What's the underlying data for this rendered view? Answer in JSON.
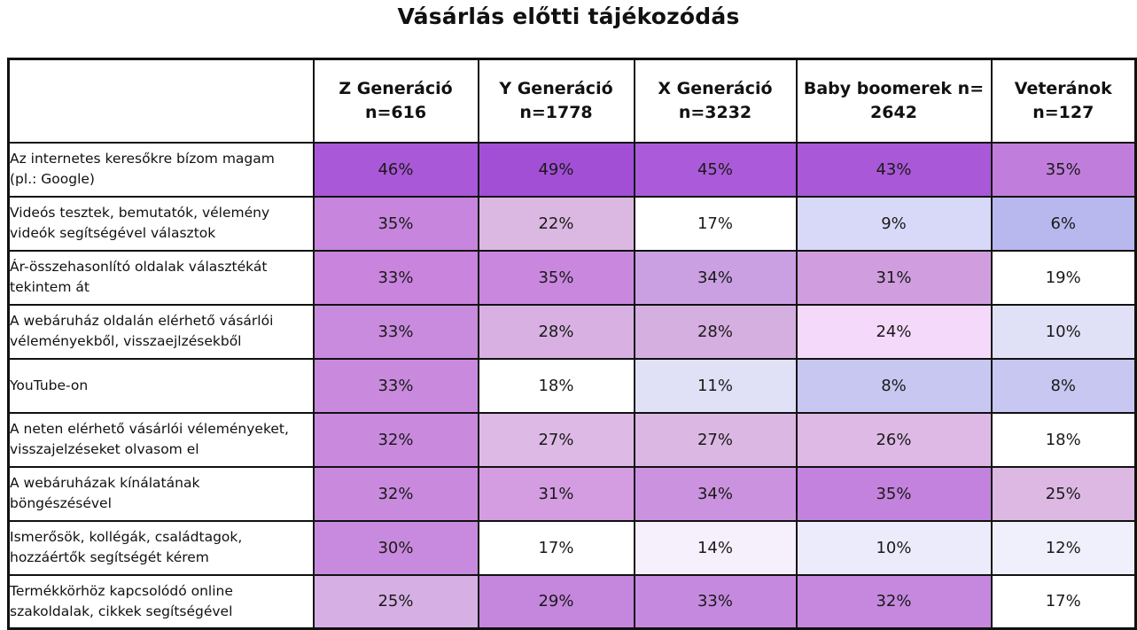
{
  "chart_data": {
    "type": "heatmap",
    "title": "Vásárlás előtti tájékozódás",
    "columns": [
      [
        "Z Generáció",
        "n=616"
      ],
      [
        "Y Generáció",
        "n=1778"
      ],
      [
        "X Generáció",
        "n=3232"
      ],
      [
        "Baby boomerek n=",
        "2642"
      ],
      [
        "Veteránok",
        "n=127"
      ]
    ],
    "rows": [
      [
        "Az internetes keresőkre bízom magam",
        "(pl.: Google)"
      ],
      [
        "Videós tesztek, bemutatók, vélemény",
        "videók segítségével választok"
      ],
      [
        "Ár-összehasonlító oldalak választékát",
        "tekintem át"
      ],
      [
        "A webáruház oldalán elérhető vásárlói",
        "véleményekből, visszaejlzésekből"
      ],
      [
        "YouTube-on"
      ],
      [
        "A neten elérhető vásárlói véleményeket,",
        "visszajelzéseket olvasom el"
      ],
      [
        "A webáruházak kínálatának",
        "böngészésével"
      ],
      [
        "Ismerősök, kollégák, családtagok,",
        "hozzáértők segítségét kérem"
      ],
      [
        "Termékkörhöz kapcsolódó online",
        "szakoldalak, cikkek segítségével"
      ]
    ],
    "values": [
      [
        46,
        49,
        45,
        43,
        35
      ],
      [
        35,
        22,
        17,
        9,
        6
      ],
      [
        33,
        35,
        34,
        31,
        19
      ],
      [
        33,
        28,
        28,
        24,
        10
      ],
      [
        33,
        18,
        11,
        8,
        8
      ],
      [
        32,
        27,
        27,
        26,
        18
      ],
      [
        32,
        31,
        34,
        35,
        25
      ],
      [
        30,
        17,
        14,
        10,
        12
      ],
      [
        25,
        29,
        33,
        32,
        17
      ]
    ],
    "unit": "%",
    "cell_colors": [
      [
        "#a958d8",
        "#a24fd6",
        "#ab5bd9",
        "#a958d8",
        "#c17ddc"
      ],
      [
        "#c785dd",
        "#dbb8e1",
        "#ffffff",
        "#d8d8f8",
        "#b8b8ee"
      ],
      [
        "#c984de",
        "#c988de",
        "#caa0e2",
        "#d09ede",
        "#ffffff"
      ],
      [
        "#c98bde",
        "#d8b1e2",
        "#d6afe1",
        "#f4d9fb",
        "#e0e0f7"
      ],
      [
        "#c98ade",
        "#ffffff",
        "#e0e0f7",
        "#c7c7f2",
        "#c7c7f2"
      ],
      [
        "#c98ade",
        "#ddb9e5",
        "#dbb8e3",
        "#dfb9e5",
        "#ffffff"
      ],
      [
        "#c98ade",
        "#d49de1",
        "#cb93df",
        "#c382dd",
        "#dcb8e3"
      ],
      [
        "#c88ade",
        "#ffffff",
        "#f6effc",
        "#ebebfb",
        "#f0f0fc"
      ],
      [
        "#d6b0e4",
        "#c586dd",
        "#c58adf",
        "#c688df",
        "#ffffff"
      ]
    ]
  }
}
